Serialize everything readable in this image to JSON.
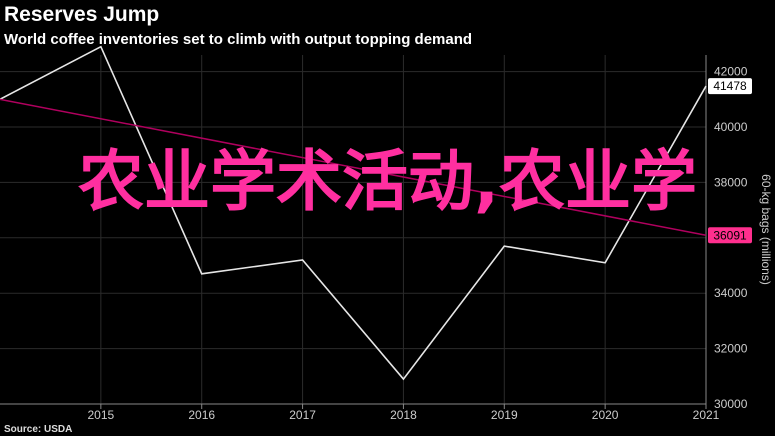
{
  "header": {
    "title": "Reserves Jump",
    "subtitle": "World coffee inventories set to climb with output topping demand"
  },
  "footer": {
    "source": "Source: USDA"
  },
  "overlay_text": "农业学术活动,农业学",
  "colors": {
    "background": "#000000",
    "grid": "#2b2b2b",
    "series_line": "#e6e6e6",
    "trend_line": "#b0005e",
    "trend_badge": "#ff2f8e",
    "value_badge": "#ffffff",
    "overlay": "#ff2fa0"
  },
  "chart_data": {
    "type": "line",
    "title": "Reserves Jump",
    "subtitle": "World coffee inventories set to climb with output topping demand",
    "ylabel": "60-kg bags (millions)",
    "xlim": [
      2014,
      2021
    ],
    "ylim": [
      30000,
      42600
    ],
    "y_axis_position": "right",
    "grid": true,
    "x_ticks": [
      "2015",
      "2016",
      "2017",
      "2018",
      "2019",
      "2020",
      "2021"
    ],
    "y_ticks": [
      "30000",
      "32000",
      "34000",
      "36000",
      "38000",
      "40000",
      "42000"
    ],
    "series": [
      {
        "name": "",
        "style": "line",
        "x": [
          2014,
          2015,
          2016,
          2017,
          2018,
          2019,
          2020,
          2021
        ],
        "values": [
          41000,
          42900,
          34700,
          35200,
          30900,
          35700,
          35100,
          41478
        ]
      },
      {
        "name": "",
        "style": "trend",
        "x": [
          2014,
          2021
        ],
        "values": [
          41000,
          36091
        ]
      }
    ],
    "annotations": [
      {
        "label": "41478",
        "value": 41478,
        "style": "white-badge"
      },
      {
        "label": "36091",
        "value": 36091,
        "style": "pink-badge"
      }
    ]
  }
}
